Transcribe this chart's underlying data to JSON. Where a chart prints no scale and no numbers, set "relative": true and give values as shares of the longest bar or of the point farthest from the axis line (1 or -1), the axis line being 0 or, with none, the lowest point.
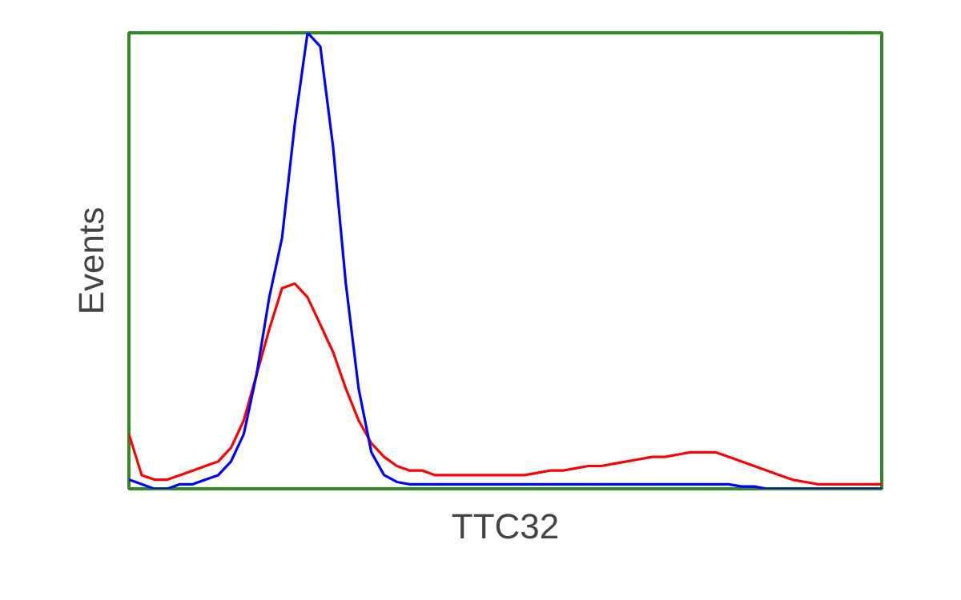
{
  "chart_data": {
    "type": "line",
    "relative": true,
    "xlabel": "TTC32",
    "ylabel": "Events",
    "categories": [
      null,
      null,
      null,
      null,
      null,
      null,
      null,
      null,
      null,
      null,
      null,
      null,
      null,
      null,
      null,
      null,
      null,
      null,
      null,
      null,
      null,
      null,
      null,
      null,
      null,
      null,
      null,
      null,
      null,
      null,
      null,
      null,
      null,
      null,
      null,
      null,
      null,
      null,
      null,
      null,
      null,
      null,
      null,
      null,
      null,
      null,
      null,
      null,
      null,
      null,
      null,
      null,
      null,
      null,
      null,
      null,
      null,
      null,
      null,
      null
    ],
    "series": [
      {
        "color": "#ff0000",
        "values": [
          0.12,
          0.03,
          0.02,
          0.02,
          0.03,
          0.04,
          0.05,
          0.06,
          0.09,
          0.15,
          0.25,
          0.35,
          0.44,
          0.45,
          0.42,
          0.36,
          0.3,
          0.22,
          0.15,
          0.1,
          0.07,
          0.05,
          0.04,
          0.04,
          0.03,
          0.03,
          0.03,
          0.03,
          0.03,
          0.03,
          0.03,
          0.03,
          0.035,
          0.04,
          0.04,
          0.045,
          0.05,
          0.05,
          0.055,
          0.06,
          0.065,
          0.07,
          0.07,
          0.075,
          0.08,
          0.08,
          0.08,
          0.07,
          0.06,
          0.05,
          0.04,
          0.03,
          0.02,
          0.015,
          0.01,
          0.01,
          0.01,
          0.01,
          0.01,
          0.01
        ]
      },
      {
        "color": "#0000ff",
        "values": [
          0.02,
          0.01,
          0,
          0,
          0.01,
          0.01,
          0.02,
          0.03,
          0.06,
          0.12,
          0.25,
          0.42,
          0.55,
          0.8,
          1.0,
          0.97,
          0.75,
          0.45,
          0.22,
          0.08,
          0.03,
          0.015,
          0.01,
          0.01,
          0.01,
          0.01,
          0.01,
          0.01,
          0.01,
          0.01,
          0.01,
          0.01,
          0.01,
          0.01,
          0.01,
          0.01,
          0.01,
          0.01,
          0.01,
          0.01,
          0.01,
          0.01,
          0.01,
          0.01,
          0.01,
          0.01,
          0.01,
          0.01,
          0.005,
          0.005,
          0,
          0,
          0,
          0,
          0,
          0,
          0,
          0,
          0,
          0
        ]
      }
    ]
  }
}
